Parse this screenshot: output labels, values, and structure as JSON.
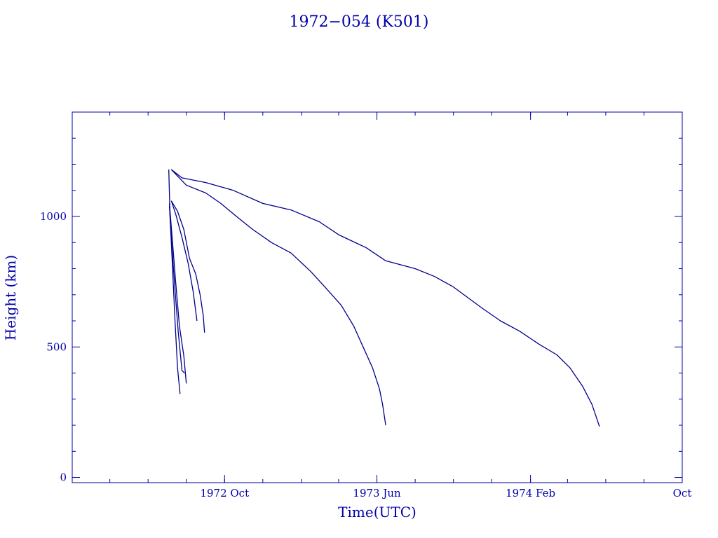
{
  "chart_data": {
    "type": "line",
    "title": "1972−054 (K501)",
    "xlabel": "Time(UTC)",
    "ylabel": "Height (km)",
    "x_tick_labels": [
      "1972 Oct",
      "1973 Jun",
      "1974 Feb",
      "Oct"
    ],
    "x_ticks": [
      "1972-10-01",
      "1973-06-01",
      "1974-02-01",
      "1974-10-01"
    ],
    "y_ticks": [
      0,
      500,
      1000
    ],
    "xlim": [
      "1972-02-01",
      "1974-10-01"
    ],
    "ylim": [
      -20,
      1400
    ],
    "series": [
      {
        "values": [
          [
            "1972-07-08",
            1180
          ],
          [
            "1972-07-25",
            1148
          ],
          [
            "1972-09-01",
            1130
          ],
          [
            "1972-10-15",
            1100
          ],
          [
            "1972-12-01",
            1050
          ],
          [
            "1973-01-15",
            1025
          ],
          [
            "1973-03-01",
            980
          ],
          [
            "1973-04-01",
            930
          ],
          [
            "1973-05-15",
            880
          ],
          [
            "1973-06-15",
            830
          ],
          [
            "1973-08-01",
            800
          ],
          [
            "1973-09-01",
            770
          ],
          [
            "1973-10-01",
            730
          ],
          [
            "1973-11-15",
            650
          ],
          [
            "1973-12-15",
            600
          ],
          [
            "1974-01-15",
            560
          ],
          [
            "1974-02-15",
            510
          ],
          [
            "1974-03-15",
            470
          ],
          [
            "1974-04-05",
            420
          ],
          [
            "1974-04-25",
            350
          ],
          [
            "1974-05-10",
            280
          ],
          [
            "1974-05-22",
            195
          ]
        ]
      },
      {
        "values": [
          [
            "1972-07-08",
            1180
          ],
          [
            "1972-08-01",
            1120
          ],
          [
            "1972-09-01",
            1090
          ],
          [
            "1972-09-25",
            1050
          ],
          [
            "1972-10-20",
            1000
          ],
          [
            "1972-11-15",
            950
          ],
          [
            "1972-12-15",
            900
          ],
          [
            "1973-01-15",
            860
          ],
          [
            "1973-02-15",
            790
          ],
          [
            "1973-03-10",
            730
          ],
          [
            "1973-04-05",
            660
          ],
          [
            "1973-04-25",
            580
          ],
          [
            "1973-05-10",
            500
          ],
          [
            "1973-05-25",
            420
          ],
          [
            "1973-06-05",
            340
          ],
          [
            "1973-06-10",
            280
          ],
          [
            "1973-06-15",
            200
          ]
        ]
      },
      {
        "values": [
          [
            "1972-07-08",
            1060
          ],
          [
            "1972-07-15",
            1010
          ],
          [
            "1972-07-25",
            920
          ],
          [
            "1972-08-04",
            820
          ],
          [
            "1972-08-12",
            710
          ],
          [
            "1972-08-18",
            600
          ]
        ]
      },
      {
        "values": [
          [
            "1972-07-08",
            1060
          ],
          [
            "1972-07-18",
            1020
          ],
          [
            "1972-07-28",
            950
          ],
          [
            "1972-08-06",
            840
          ],
          [
            "1972-08-16",
            780
          ],
          [
            "1972-08-23",
            700
          ],
          [
            "1972-08-28",
            620
          ],
          [
            "1972-08-30",
            555
          ]
        ]
      },
      {
        "values": [
          [
            "1972-07-05",
            1050
          ],
          [
            "1972-07-10",
            900
          ],
          [
            "1972-07-15",
            750
          ],
          [
            "1972-07-21",
            580
          ],
          [
            "1972-07-28",
            465
          ],
          [
            "1972-08-01",
            360
          ]
        ]
      },
      {
        "values": [
          [
            "1972-07-05",
            1040
          ],
          [
            "1972-07-09",
            880
          ],
          [
            "1972-07-14",
            720
          ],
          [
            "1972-07-19",
            560
          ],
          [
            "1972-07-25",
            410
          ],
          [
            "1972-07-29",
            400
          ]
        ]
      },
      {
        "values": [
          [
            "1972-07-04",
            1180
          ],
          [
            "1972-07-06",
            1000
          ],
          [
            "1972-07-10",
            800
          ],
          [
            "1972-07-14",
            600
          ],
          [
            "1972-07-18",
            420
          ],
          [
            "1972-07-22",
            320
          ]
        ]
      }
    ]
  }
}
